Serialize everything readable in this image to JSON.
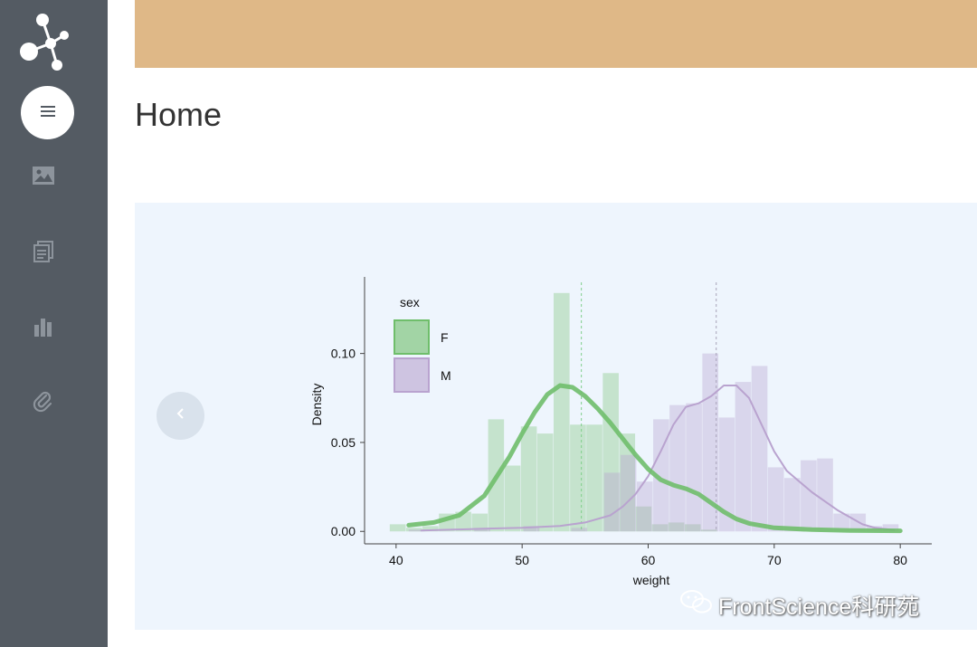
{
  "page": {
    "title": "Home"
  },
  "colors": {
    "sidebar": "#545b63",
    "topbar": "#dfb887",
    "panel": "#eef5fd",
    "female": "#6fbe6b",
    "male": "#b9a3cf"
  },
  "sidebar": {
    "items": [
      {
        "icon": "menu-icon",
        "active": true
      },
      {
        "icon": "image-icon"
      },
      {
        "icon": "document-icon"
      },
      {
        "icon": "bar-chart-icon"
      },
      {
        "icon": "paperclip-icon"
      }
    ]
  },
  "carousel": {
    "prev_icon": "chevron-left-icon"
  },
  "watermark": {
    "icon": "wechat-icon",
    "text": "FrontScience科研苑"
  },
  "chart_data": {
    "type": "histogram",
    "title": "",
    "xlabel": "weight",
    "ylabel": "Density",
    "xlim": [
      37.5,
      82.5
    ],
    "ylim": [
      -0.007,
      0.14
    ],
    "xticks": [
      40,
      50,
      60,
      70,
      80
    ],
    "yticks": [
      0.0,
      0.05,
      0.1
    ],
    "ytick_labels": [
      "0.00",
      "0.05",
      "0.10"
    ],
    "legend": {
      "title": "sex",
      "position": "top-left",
      "entries": [
        "F",
        "M"
      ]
    },
    "grid": false,
    "series": [
      {
        "name": "F",
        "color": "#6fbe6b",
        "mean": 54.7,
        "bins": [
          [
            39.5,
            40.8,
            0.004
          ],
          [
            40.8,
            42.1,
            0.002
          ],
          [
            42.1,
            43.4,
            0.003
          ],
          [
            43.4,
            44.7,
            0.01
          ],
          [
            44.7,
            46.0,
            0.011
          ],
          [
            46.0,
            47.3,
            0.01
          ],
          [
            47.3,
            48.6,
            0.063
          ],
          [
            48.6,
            49.9,
            0.037
          ],
          [
            49.9,
            51.2,
            0.059
          ],
          [
            51.2,
            52.5,
            0.055
          ],
          [
            52.5,
            53.8,
            0.134
          ],
          [
            53.8,
            55.1,
            0.06
          ],
          [
            55.1,
            56.4,
            0.06
          ],
          [
            56.4,
            57.7,
            0.089
          ],
          [
            57.7,
            59.0,
            0.055
          ],
          [
            59.0,
            60.3,
            0.014
          ],
          [
            60.3,
            61.6,
            0.004
          ],
          [
            61.6,
            62.9,
            0.005
          ],
          [
            62.9,
            64.2,
            0.004
          ],
          [
            64.2,
            65.5,
            0.001
          ]
        ],
        "density": [
          [
            41,
            0.0035
          ],
          [
            43,
            0.005
          ],
          [
            45,
            0.009
          ],
          [
            47,
            0.02
          ],
          [
            49,
            0.042
          ],
          [
            50,
            0.055
          ],
          [
            51,
            0.067
          ],
          [
            52,
            0.077
          ],
          [
            53,
            0.082
          ],
          [
            54,
            0.081
          ],
          [
            55,
            0.076
          ],
          [
            56,
            0.069
          ],
          [
            57,
            0.061
          ],
          [
            58,
            0.052
          ],
          [
            59,
            0.043
          ],
          [
            60,
            0.035
          ],
          [
            61,
            0.029
          ],
          [
            62,
            0.026
          ],
          [
            63,
            0.024
          ],
          [
            64,
            0.021
          ],
          [
            65,
            0.016
          ],
          [
            66,
            0.011
          ],
          [
            67,
            0.007
          ],
          [
            68,
            0.0045
          ],
          [
            70,
            0.002
          ],
          [
            73,
            0.001
          ],
          [
            76,
            0.0005
          ],
          [
            80,
            0.0003
          ]
        ]
      },
      {
        "name": "M",
        "color": "#b9a3cf",
        "mean": 65.4,
        "bins": [
          [
            41.0,
            42.3,
            0.001
          ],
          [
            46.2,
            47.5,
            0.002
          ],
          [
            50.1,
            51.4,
            0.003
          ],
          [
            53.9,
            55.2,
            0.002
          ],
          [
            56.5,
            57.8,
            0.033
          ],
          [
            57.8,
            59.1,
            0.043
          ],
          [
            59.1,
            60.4,
            0.028
          ],
          [
            60.4,
            61.7,
            0.063
          ],
          [
            61.7,
            63.0,
            0.071
          ],
          [
            63.0,
            64.3,
            0.072
          ],
          [
            64.3,
            65.6,
            0.1
          ],
          [
            65.6,
            66.9,
            0.064
          ],
          [
            66.9,
            68.2,
            0.084
          ],
          [
            68.2,
            69.5,
            0.093
          ],
          [
            69.5,
            70.8,
            0.036
          ],
          [
            70.8,
            72.1,
            0.03
          ],
          [
            72.1,
            73.4,
            0.04
          ],
          [
            73.4,
            74.7,
            0.041
          ],
          [
            74.7,
            76.0,
            0.01
          ],
          [
            76.0,
            77.3,
            0.01
          ],
          [
            77.3,
            78.6,
            0.003
          ],
          [
            78.6,
            79.9,
            0.004
          ]
        ],
        "density": [
          [
            42,
            0.0005
          ],
          [
            47,
            0.0015
          ],
          [
            50,
            0.002
          ],
          [
            53,
            0.003
          ],
          [
            55,
            0.005
          ],
          [
            57,
            0.009
          ],
          [
            58,
            0.014
          ],
          [
            59,
            0.021
          ],
          [
            60,
            0.031
          ],
          [
            61,
            0.045
          ],
          [
            62,
            0.06
          ],
          [
            63,
            0.07
          ],
          [
            64,
            0.072
          ],
          [
            65,
            0.076
          ],
          [
            66,
            0.082
          ],
          [
            67,
            0.082
          ],
          [
            68,
            0.075
          ],
          [
            69,
            0.06
          ],
          [
            70,
            0.045
          ],
          [
            71,
            0.034
          ],
          [
            72,
            0.028
          ],
          [
            73,
            0.022
          ],
          [
            74,
            0.017
          ],
          [
            75,
            0.012
          ],
          [
            76,
            0.008
          ],
          [
            77,
            0.004
          ],
          [
            78,
            0.002
          ],
          [
            79.5,
            0.0008
          ]
        ]
      }
    ]
  }
}
